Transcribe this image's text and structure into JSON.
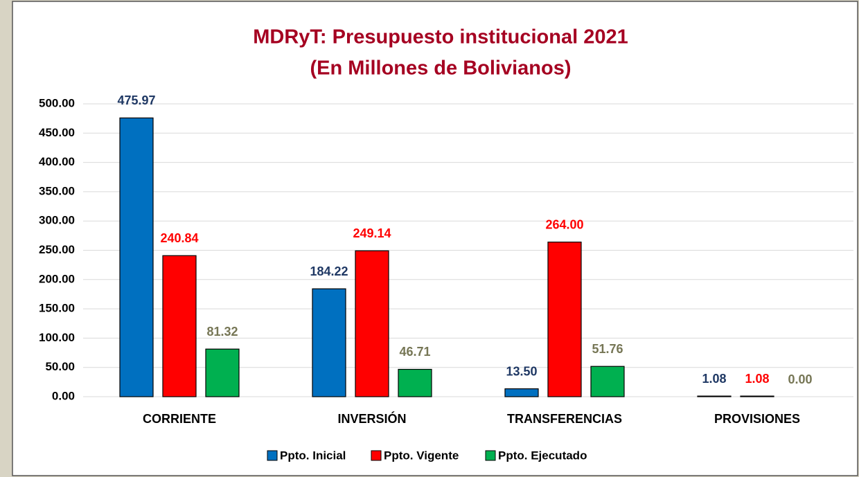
{
  "chart_data": {
    "type": "bar",
    "title": "MDRyT: Presupuesto institucional 2021",
    "subtitle": "(En Millones de Bolivianos)",
    "categories": [
      "CORRIENTE",
      "INVERSIÓN",
      "TRANSFERENCIAS",
      "PROVISIONES"
    ],
    "series": [
      {
        "name": "Ppto. Inicial",
        "color": "#0070c0",
        "label_color": "#1f3864",
        "values": [
          475.97,
          184.22,
          13.5,
          1.08
        ],
        "value_labels": [
          "475.97",
          "184.22",
          "13.50",
          "1.08"
        ]
      },
      {
        "name": "Ppto. Vigente",
        "color": "#ff0000",
        "label_color": "#ff0000",
        "values": [
          240.84,
          249.14,
          264,
          1.08
        ],
        "value_labels": [
          "240.84",
          "249.14",
          "264.00",
          "1.08"
        ]
      },
      {
        "name": "Ppto. Ejecutado",
        "color": "#00b050",
        "label_color": "#767655",
        "values": [
          81.32,
          46.71,
          51.76,
          0
        ],
        "value_labels": [
          "81.32",
          "46.71",
          "51.76",
          "0.00"
        ]
      }
    ],
    "ylim": [
      0,
      500
    ],
    "yticks": [
      {
        "value": 0,
        "label": "0.00"
      },
      {
        "value": 50,
        "label": "50.00"
      },
      {
        "value": 100,
        "label": "100.00"
      },
      {
        "value": 150,
        "label": "150.00"
      },
      {
        "value": 200,
        "label": "200.00"
      },
      {
        "value": 250,
        "label": "250.00"
      },
      {
        "value": 300,
        "label": "300.00"
      },
      {
        "value": 350,
        "label": "350.00"
      },
      {
        "value": 400,
        "label": "400.00"
      },
      {
        "value": 450,
        "label": "450.00"
      },
      {
        "value": 500,
        "label": "500.00"
      }
    ],
    "grid": true,
    "legend": "bottom"
  }
}
